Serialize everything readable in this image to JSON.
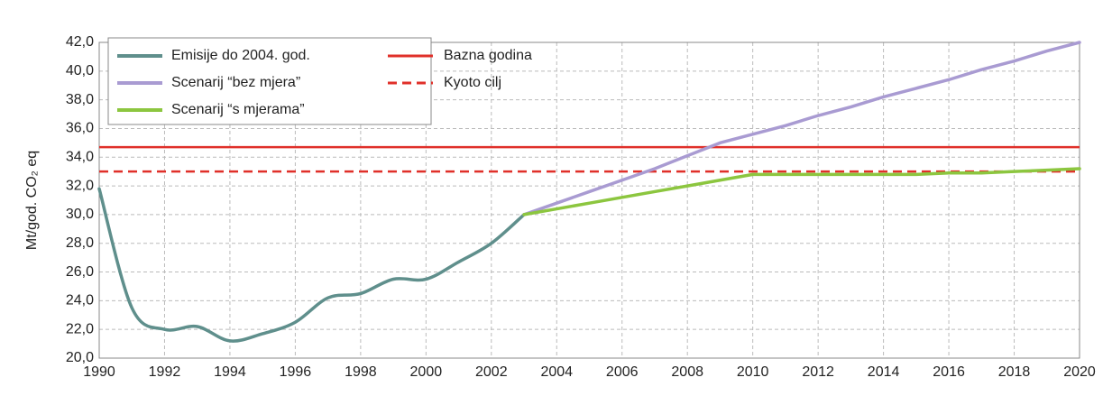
{
  "chart_data": {
    "type": "line",
    "y_label": "Mt/god. CO₂ eq",
    "x": [
      1990,
      1991,
      1992,
      1993,
      1994,
      1995,
      1996,
      1997,
      1998,
      1999,
      2000,
      2001,
      2002,
      2003,
      2004,
      2005,
      2006,
      2007,
      2008,
      2009,
      2010,
      2011,
      2012,
      2013,
      2014,
      2015,
      2016,
      2017,
      2018,
      2019,
      2020
    ],
    "series": [
      {
        "name": "Emisije do 2004. god.",
        "color": "#5f8f8c",
        "smooth": true,
        "values": [
          31.8,
          23.5,
          22.0,
          22.2,
          21.2,
          21.7,
          22.5,
          24.2,
          24.5,
          25.5,
          25.5,
          26.7,
          28.0,
          30.0,
          null,
          null,
          null,
          null,
          null,
          null,
          null,
          null,
          null,
          null,
          null,
          null,
          null,
          null,
          null,
          null,
          null
        ]
      },
      {
        "name": "Scenarij “bez mjera”",
        "color": "#a99bd2",
        "smooth": false,
        "values": [
          null,
          null,
          null,
          null,
          null,
          null,
          null,
          null,
          null,
          null,
          null,
          null,
          null,
          30.0,
          30.8,
          31.6,
          32.4,
          33.2,
          34.1,
          35.0,
          35.6,
          36.2,
          36.9,
          37.5,
          38.2,
          38.8,
          39.4,
          40.1,
          40.7,
          41.4,
          42.0
        ]
      },
      {
        "name": "Scenarij “s mjerama”",
        "color": "#8cc63f",
        "smooth": false,
        "values": [
          null,
          null,
          null,
          null,
          null,
          null,
          null,
          null,
          null,
          null,
          null,
          null,
          null,
          30.0,
          30.4,
          30.8,
          31.2,
          31.6,
          32.0,
          32.4,
          32.8,
          32.8,
          32.8,
          32.8,
          32.8,
          32.8,
          32.9,
          32.9,
          33.0,
          33.1,
          33.2
        ]
      }
    ],
    "reference_lines": [
      {
        "name": "Bazna godina",
        "color": "#e0302a",
        "value": 34.7,
        "dashed": false
      },
      {
        "name": "Kyoto cilj",
        "color": "#e0302a",
        "value": 33.0,
        "dashed": true
      }
    ],
    "xlim": [
      1990,
      2020
    ],
    "xticks": [
      1990,
      1992,
      1994,
      1996,
      1998,
      2000,
      2002,
      2004,
      2006,
      2008,
      2010,
      2012,
      2014,
      2016,
      2018,
      2020
    ],
    "ylim": [
      20,
      42
    ],
    "yticks": [
      {
        "value": 20,
        "label": "20,0"
      },
      {
        "value": 22,
        "label": "22,0"
      },
      {
        "value": 24,
        "label": "24,0"
      },
      {
        "value": 26,
        "label": "26,0"
      },
      {
        "value": 28,
        "label": "28,0"
      },
      {
        "value": 30,
        "label": "30,0"
      },
      {
        "value": 32,
        "label": "32,0"
      },
      {
        "value": 34,
        "label": "34,0"
      },
      {
        "value": 36,
        "label": "36,0"
      },
      {
        "value": 38,
        "label": "38,0"
      },
      {
        "value": 40,
        "label": "40,0"
      },
      {
        "value": 42,
        "label": "42,0"
      }
    ],
    "grid": true
  }
}
